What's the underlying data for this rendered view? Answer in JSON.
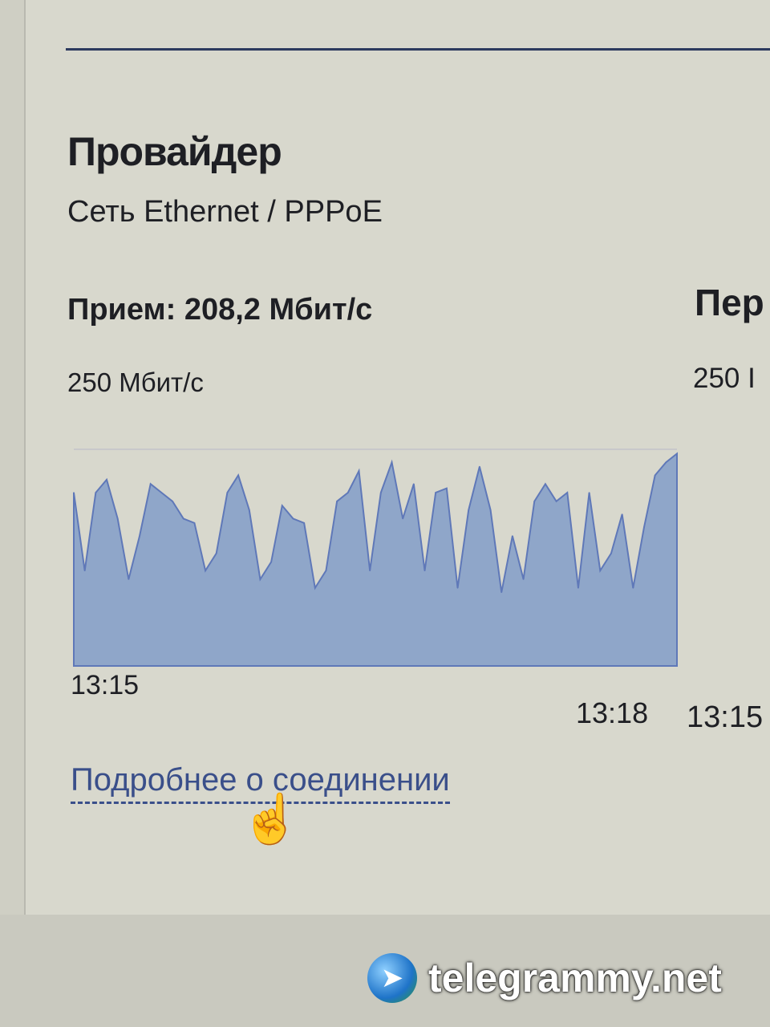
{
  "provider": {
    "title": "Провайдер",
    "subtitle": "Сеть Ethernet / PPPoE",
    "receive_label": "Прием: 208,2 Мбит/с",
    "transmit_label_partial": "Пер",
    "receive_max": "250 Мбит/с",
    "transmit_max_partial": "250 I",
    "transmit_time_start": "13:15",
    "details_link": "Подробнее о соединении"
  },
  "colors": {
    "accent": "#3a4f8a",
    "chart_fill": "#8fa6c9",
    "chart_line": "#5f78b8"
  },
  "chart_data": {
    "type": "area",
    "x_start_label": "13:15",
    "x_end_label": "13:18",
    "ylim": [
      0,
      250
    ],
    "y_max_label": "250 Мбит/с",
    "values": [
      200,
      110,
      200,
      215,
      170,
      100,
      150,
      210,
      200,
      190,
      170,
      165,
      110,
      130,
      200,
      220,
      180,
      100,
      120,
      185,
      170,
      165,
      90,
      110,
      190,
      200,
      225,
      110,
      200,
      235,
      170,
      210,
      110,
      200,
      205,
      90,
      180,
      230,
      180,
      85,
      150,
      100,
      190,
      210,
      190,
      200,
      90,
      200,
      110,
      130,
      175,
      90,
      160,
      220,
      235,
      245
    ]
  },
  "watermark": {
    "text": "telegrammy.net"
  }
}
